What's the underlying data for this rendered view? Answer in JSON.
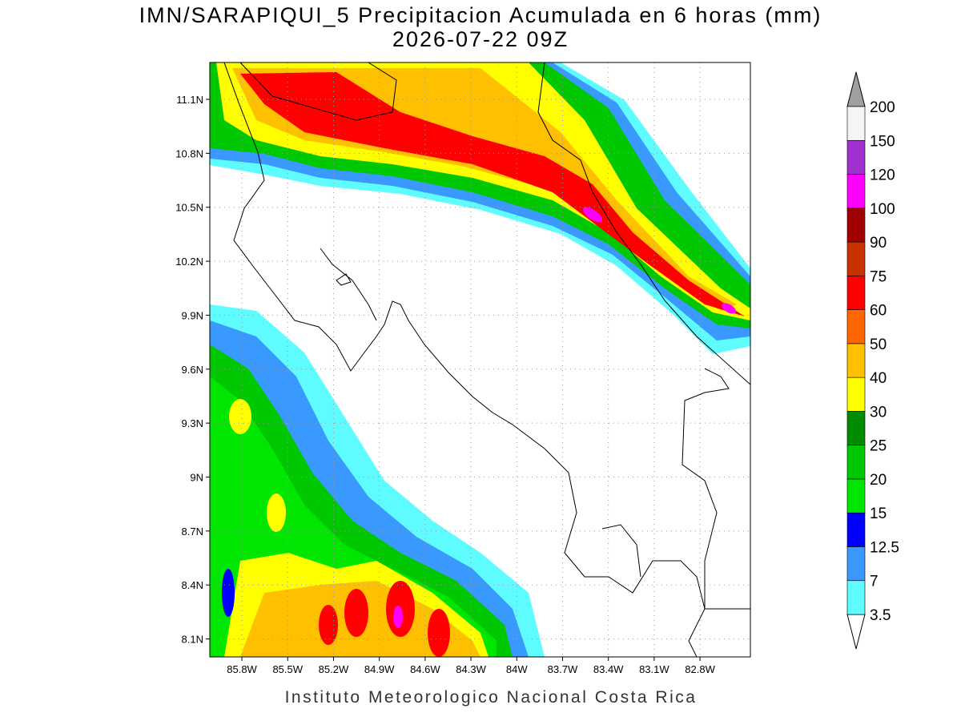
{
  "title": "IMN/SARAPIQUI_5 Precipitacion Acumulada en 6 horas (mm)",
  "subtitle": "2026-07-22 09Z",
  "map": {
    "lat_range": [
      8.0,
      11.305
    ],
    "lon_range": [
      -86.01,
      -82.47
    ],
    "lat_ticks": [
      {
        "value": 11.1,
        "label": "11.1N"
      },
      {
        "value": 10.8,
        "label": "10.8N"
      },
      {
        "value": 10.5,
        "label": "10.5N"
      },
      {
        "value": 10.2,
        "label": "10.2N"
      },
      {
        "value": 9.9,
        "label": "9.9N"
      },
      {
        "value": 9.6,
        "label": "9.6N"
      },
      {
        "value": 9.3,
        "label": "9.3N"
      },
      {
        "value": 9.0,
        "label": "9N"
      },
      {
        "value": 8.7,
        "label": "8.7N"
      },
      {
        "value": 8.4,
        "label": "8.4N"
      },
      {
        "value": 8.1,
        "label": "8.1N"
      }
    ],
    "lon_ticks": [
      {
        "value": -85.8,
        "label": "85.8W"
      },
      {
        "value": -85.5,
        "label": "85.5W"
      },
      {
        "value": -85.2,
        "label": "85.2W"
      },
      {
        "value": -84.9,
        "label": "84.9W"
      },
      {
        "value": -84.6,
        "label": "84.6W"
      },
      {
        "value": -84.3,
        "label": "84.3W"
      },
      {
        "value": -84.0,
        "label": "84W"
      },
      {
        "value": -83.7,
        "label": "83.7W"
      },
      {
        "value": -83.4,
        "label": "83.4W"
      },
      {
        "value": -83.1,
        "label": "83.1W"
      },
      {
        "value": -82.8,
        "label": "82.8W"
      }
    ],
    "grid": true
  },
  "legend": {
    "levels": [
      3.5,
      7,
      12.5,
      15,
      20,
      25,
      30,
      40,
      50,
      60,
      75,
      90,
      100,
      120,
      150,
      200
    ],
    "bin_colors": [
      "#5ffcff",
      "#3a99ff",
      "#0000ff",
      "#00e600",
      "#00c800",
      "#008c00",
      "#ffff00",
      "#ffc000",
      "#ff6600",
      "#ff0000",
      "#c83200",
      "#a00000",
      "#ff00ff",
      "#a030d0",
      "#f5f5f5"
    ],
    "under_color": "#ffffff",
    "over_color": "#a0a0a0"
  },
  "footer": "Instituto Meteorologico Nacional Costa Rica"
}
